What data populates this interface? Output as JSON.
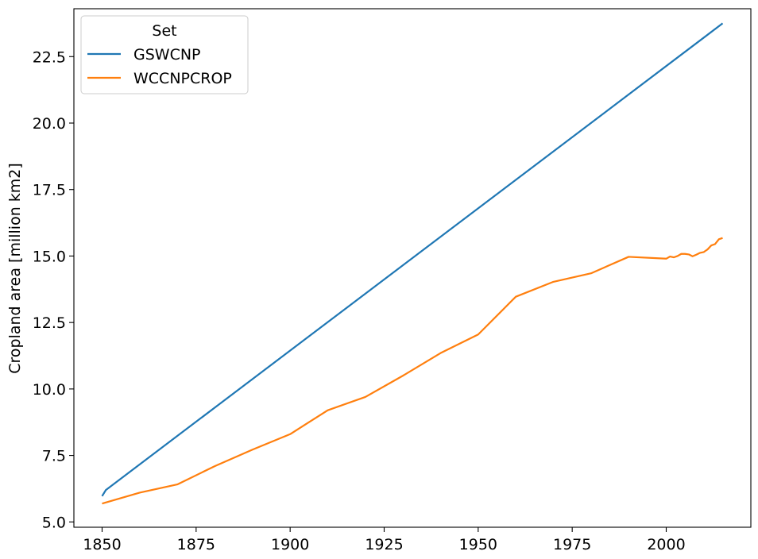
{
  "chart_data": {
    "type": "line",
    "title": "",
    "xlabel": "",
    "ylabel": "Cropland area [million km2]",
    "xlim": [
      1842.5,
      2022.5
    ],
    "ylim": [
      4.8,
      24.3
    ],
    "xticks": [
      1850,
      1875,
      1900,
      1925,
      1950,
      1975,
      2000
    ],
    "xtick_labels": [
      "1850",
      "1875",
      "1900",
      "1925",
      "1950",
      "1975",
      "2000"
    ],
    "yticks": [
      5.0,
      7.5,
      10.0,
      12.5,
      15.0,
      17.5,
      20.0,
      22.5
    ],
    "ytick_labels": [
      "5.0",
      "7.5",
      "10.0",
      "12.5",
      "15.0",
      "17.5",
      "20.0",
      "22.5"
    ],
    "grid": false,
    "legend": {
      "title": "Set",
      "placement": "top-left"
    },
    "series": [
      {
        "name": "GSWCNP",
        "color": "#1f77b4",
        "points": [
          [
            1850,
            5.97
          ],
          [
            1851,
            6.2
          ],
          [
            2015,
            23.75
          ]
        ]
      },
      {
        "name": "WCCNPCROP",
        "color": "#ff7f0e",
        "points": [
          [
            1850,
            5.69
          ],
          [
            1860,
            6.1
          ],
          [
            1870,
            6.41
          ],
          [
            1880,
            7.1
          ],
          [
            1890,
            7.72
          ],
          [
            1900,
            8.3
          ],
          [
            1910,
            9.2
          ],
          [
            1920,
            9.7
          ],
          [
            1930,
            10.5
          ],
          [
            1940,
            11.35
          ],
          [
            1950,
            12.05
          ],
          [
            1960,
            13.47
          ],
          [
            1970,
            14.03
          ],
          [
            1980,
            14.35
          ],
          [
            1990,
            14.97
          ],
          [
            2000,
            14.9
          ],
          [
            2001,
            14.98
          ],
          [
            2002,
            14.95
          ],
          [
            2003,
            15.0
          ],
          [
            2004,
            15.08
          ],
          [
            2005,
            15.08
          ],
          [
            2006,
            15.06
          ],
          [
            2007,
            14.99
          ],
          [
            2008,
            15.05
          ],
          [
            2009,
            15.12
          ],
          [
            2010,
            15.15
          ],
          [
            2011,
            15.25
          ],
          [
            2012,
            15.4
          ],
          [
            2013,
            15.45
          ],
          [
            2014,
            15.63
          ],
          [
            2015,
            15.68
          ]
        ]
      }
    ]
  }
}
